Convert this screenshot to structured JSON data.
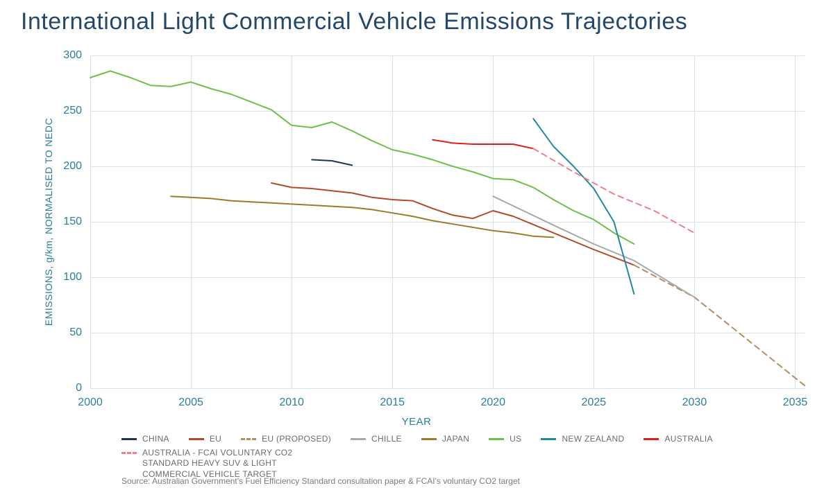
{
  "title": "International Light Commercial Vehicle Emissions Trajectories",
  "chart": {
    "type": "line",
    "background_color": "#ffffff",
    "grid_color": "#d7e3ec",
    "axis_text_color": "#2a7e9b",
    "xlabel": "YEAR",
    "ylabel": "EMISSIONS, g/km, NORMALISED TO NEDC",
    "label_fontsize": 14,
    "tick_fontsize": 16,
    "title_fontsize": 34,
    "title_color": "#24486c",
    "xlim": [
      2000,
      2035.5
    ],
    "ylim": [
      0,
      300
    ],
    "xticks": [
      2000,
      2005,
      2010,
      2015,
      2020,
      2025,
      2030,
      2035
    ],
    "yticks": [
      0,
      50,
      100,
      150,
      200,
      250,
      300
    ],
    "line_width": 2,
    "series": [
      {
        "name": "CHINA",
        "color": "#1d3557",
        "dash": "solid",
        "points": [
          [
            2011,
            206
          ],
          [
            2012,
            205
          ],
          [
            2013,
            201
          ]
        ]
      },
      {
        "name": "EU",
        "color": "#b24a29",
        "dash": "solid",
        "points": [
          [
            2009,
            185
          ],
          [
            2010,
            181
          ],
          [
            2011,
            180
          ],
          [
            2012,
            178
          ],
          [
            2013,
            176
          ],
          [
            2014,
            172
          ],
          [
            2015,
            170
          ],
          [
            2016,
            169
          ],
          [
            2017,
            162
          ],
          [
            2018,
            156
          ],
          [
            2019,
            153
          ],
          [
            2020,
            160
          ],
          [
            2021,
            155
          ],
          [
            2025,
            125
          ],
          [
            2027,
            111
          ]
        ]
      },
      {
        "name": "EU (PROPOSED)",
        "color": "#b48d64",
        "dash": "dashed",
        "points": [
          [
            2027,
            111
          ],
          [
            2030,
            82
          ],
          [
            2035.5,
            2
          ]
        ]
      },
      {
        "name": "CHILLE",
        "color": "#a9a9a9",
        "dash": "solid",
        "points": [
          [
            2020,
            173
          ],
          [
            2023,
            147
          ],
          [
            2025,
            130
          ],
          [
            2027,
            115
          ],
          [
            2030,
            82
          ]
        ]
      },
      {
        "name": "JAPAN",
        "color": "#a07a2c",
        "dash": "solid",
        "points": [
          [
            2004,
            173
          ],
          [
            2005,
            172
          ],
          [
            2006,
            171
          ],
          [
            2007,
            169
          ],
          [
            2008,
            168
          ],
          [
            2009,
            167
          ],
          [
            2010,
            166
          ],
          [
            2011,
            165
          ],
          [
            2012,
            164
          ],
          [
            2013,
            163
          ],
          [
            2014,
            161
          ],
          [
            2015,
            158
          ],
          [
            2016,
            155
          ],
          [
            2017,
            151
          ],
          [
            2018,
            148
          ],
          [
            2019,
            145
          ],
          [
            2020,
            142
          ],
          [
            2021,
            140
          ],
          [
            2022,
            137
          ],
          [
            2023,
            136
          ]
        ]
      },
      {
        "name": "US",
        "color": "#6fbf4b",
        "dash": "solid",
        "points": [
          [
            2000,
            280
          ],
          [
            2001,
            286
          ],
          [
            2002,
            280
          ],
          [
            2003,
            273
          ],
          [
            2004,
            272
          ],
          [
            2005,
            276
          ],
          [
            2006,
            270
          ],
          [
            2007,
            265
          ],
          [
            2008,
            258
          ],
          [
            2009,
            251
          ],
          [
            2010,
            237
          ],
          [
            2011,
            235
          ],
          [
            2012,
            240
          ],
          [
            2013,
            232
          ],
          [
            2014,
            223
          ],
          [
            2015,
            215
          ],
          [
            2016,
            211
          ],
          [
            2017,
            206
          ],
          [
            2018,
            200
          ],
          [
            2019,
            195
          ],
          [
            2020,
            189
          ],
          [
            2021,
            188
          ],
          [
            2022,
            181
          ],
          [
            2023,
            170
          ],
          [
            2024,
            160
          ],
          [
            2025,
            152
          ],
          [
            2026,
            140
          ],
          [
            2027,
            130
          ]
        ]
      },
      {
        "name": "NEW ZEALAND",
        "color": "#1f8a99",
        "dash": "solid",
        "points": [
          [
            2022,
            243
          ],
          [
            2023,
            218
          ],
          [
            2024,
            200
          ],
          [
            2025,
            180
          ],
          [
            2026,
            150
          ],
          [
            2027,
            85
          ]
        ]
      },
      {
        "name": "AUSTRALIA",
        "color": "#e11d1d",
        "dash": "solid",
        "points": [
          [
            2017,
            224
          ],
          [
            2018,
            221
          ],
          [
            2019,
            220
          ],
          [
            2020,
            220
          ],
          [
            2021,
            220
          ],
          [
            2022,
            216
          ]
        ]
      },
      {
        "name": "AUSTRALIA - FCAI VOLUNTARY CO2 STANDARD HEAVY SUV & LIGHT COMMERCIAL VEHICLE TARGET",
        "color": "#f27d8c",
        "dash": "dashed",
        "points": [
          [
            2022,
            216
          ],
          [
            2024,
            195
          ],
          [
            2026,
            175
          ],
          [
            2028,
            160
          ],
          [
            2030,
            140
          ]
        ]
      }
    ]
  },
  "source": "Source: Australian Government's Fuel Efficiency Standard consultation paper & FCAI's voluntary CO2 target"
}
